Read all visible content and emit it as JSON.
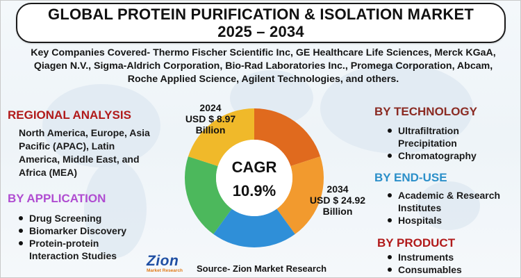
{
  "title": {
    "line1": "GLOBAL PROTEIN PURIFICATION & ISOLATION MARKET",
    "line2": "2025 – 2034"
  },
  "companies_text": "Key Companies Covered- Thermo Fischer Scientific Inc, GE Healthcare Life Sciences, Merck KGaA, Qiagen N.V., Sigma-Aldrich Corporation, Bio-Rad Laboratories Inc., Promega Corporation, Abcam, Roche Applied Science, Agilent Technologies, and others.",
  "regional": {
    "heading": "REGIONAL ANALYSIS",
    "text": "North America, Europe, Asia Pacific (APAC), Latin America, Middle East, and Africa (MEA)"
  },
  "application": {
    "heading": "BY APPLICATION",
    "items": [
      "Drug Screening",
      "Biomarker Discovery",
      "Protein-protein",
      "Interaction Studies"
    ]
  },
  "technology": {
    "heading": "BY TECHNOLOGY",
    "items": [
      "Ultrafiltration",
      "Precipitation",
      "Chromatography"
    ]
  },
  "enduse": {
    "heading": "BY END-USE",
    "items": [
      "Academic & Research",
      "Institutes",
      "Hospitals"
    ]
  },
  "product": {
    "heading": "BY PRODUCT",
    "items": [
      "Instruments",
      "Consumables"
    ]
  },
  "cagr": {
    "label": "CAGR",
    "value": "10.9%"
  },
  "callouts": {
    "y2024": {
      "year": "2024",
      "amount": "USD $ 8.97",
      "unit": "Billion"
    },
    "y2034": {
      "year": "2034",
      "amount": "USD $ 24.92",
      "unit": "Billion"
    }
  },
  "logo": {
    "name": "Zion",
    "sub": "Market Research"
  },
  "source": "Source- Zion Market Research",
  "colors": {
    "title_text": "#111111",
    "regional_heading": "#b11a1a",
    "application_heading": "#b04cd1",
    "technology_heading": "#8a2a22",
    "enduse_heading": "#2b8fc9",
    "product_heading": "#b11a1a",
    "logo_blue": "#1f4fa3",
    "logo_orange": "#e07a18"
  },
  "chart_data": {
    "type": "pie",
    "donut": true,
    "center_text": [
      "CAGR",
      "10.9%"
    ],
    "slices": [
      {
        "value": 20,
        "color": "#e06a1e"
      },
      {
        "value": 20,
        "color": "#f29a2e"
      },
      {
        "value": 20,
        "color": "#2f8fd8"
      },
      {
        "value": 20,
        "color": "#4cb85c"
      },
      {
        "value": 20,
        "color": "#f0b92a"
      }
    ],
    "annotations": [
      {
        "year": "2024",
        "value": 8.97,
        "text": "USD $ 8.97 Billion"
      },
      {
        "year": "2034",
        "value": 24.92,
        "text": "USD $ 24.92 Billion"
      }
    ]
  }
}
